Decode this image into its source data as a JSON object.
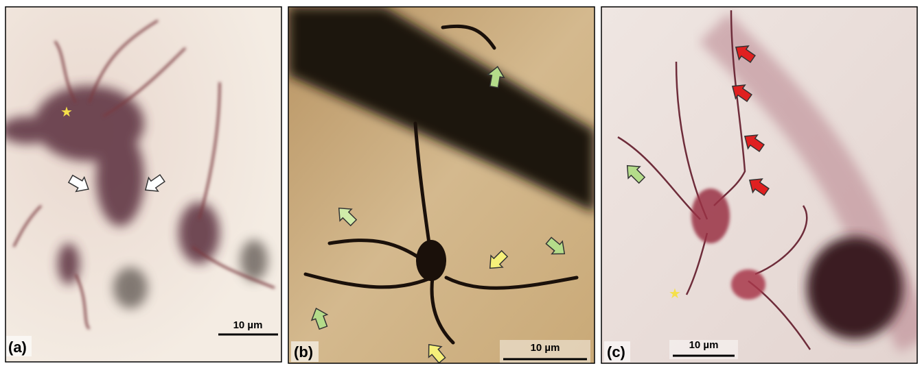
{
  "panels": [
    {
      "label": "(a)",
      "scale_bar": "10 µm"
    },
    {
      "label": "(b)",
      "scale_bar": "10 µm"
    },
    {
      "label": "(c)",
      "scale_bar": "10 µm"
    }
  ]
}
